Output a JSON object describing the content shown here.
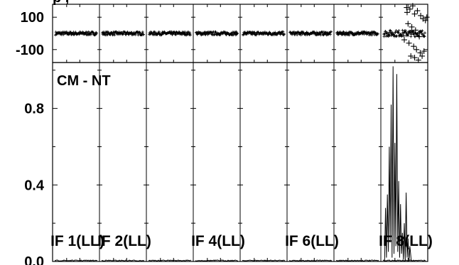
{
  "header_fragment": "p                  ,",
  "panel_label": "CM - NT",
  "chart_data": [
    {
      "type": "scatter",
      "panel": "phase",
      "ylim": [
        -180,
        180
      ],
      "y_ticks": [
        {
          "value": 100,
          "label": "100"
        },
        {
          "value": -100,
          "label": "-100"
        }
      ],
      "marker": "+",
      "grid": false,
      "if_windows": [
        {
          "phase_center": 0,
          "phase_spread": 10
        },
        {
          "phase_center": 0,
          "phase_spread": 10
        },
        {
          "phase_center": 0,
          "phase_spread": 10
        },
        {
          "phase_center": 0,
          "phase_spread": 10
        },
        {
          "phase_center": 0,
          "phase_spread": 10
        },
        {
          "phase_center": 0,
          "phase_spread": 10
        },
        {
          "phase_center": 0,
          "phase_spread": 10
        },
        {
          "phase_center": 0,
          "phase_spread": 20
        }
      ],
      "outlier_points": [
        [
          0.55,
          160
        ],
        [
          0.62,
          150
        ],
        [
          0.68,
          170
        ],
        [
          0.72,
          120
        ],
        [
          0.78,
          140
        ],
        [
          0.85,
          110
        ],
        [
          0.9,
          90
        ],
        [
          0.95,
          80
        ],
        [
          0.58,
          60
        ],
        [
          0.66,
          40
        ],
        [
          0.74,
          20
        ],
        [
          0.82,
          -20
        ],
        [
          0.6,
          -60
        ],
        [
          0.7,
          -80
        ],
        [
          0.76,
          -100
        ],
        [
          0.84,
          -120
        ],
        [
          0.64,
          -140
        ],
        [
          0.72,
          -150
        ],
        [
          0.8,
          -165
        ],
        [
          0.88,
          -140
        ],
        [
          0.92,
          -110
        ],
        [
          0.56,
          130
        ],
        [
          0.98,
          100
        ],
        [
          0.5,
          -40
        ]
      ]
    },
    {
      "type": "line",
      "panel": "amplitude",
      "ylim": [
        0,
        1.04
      ],
      "y_ticks": [
        {
          "value": 0.0,
          "label": "0.0"
        },
        {
          "value": 0.4,
          "label": "0.4"
        },
        {
          "value": 0.8,
          "label": "0.8"
        }
      ],
      "grid": false,
      "if_windows": [
        {
          "label": "IF 1(LL)",
          "baseline": 0.005
        },
        {
          "label": "IF 2(LL)",
          "baseline": 0.005
        },
        {
          "label": "",
          "baseline": 0.005
        },
        {
          "label": "IF 4(LL)",
          "baseline": 0.005
        },
        {
          "label": "",
          "baseline": 0.005
        },
        {
          "label": "IF 6(LL)",
          "baseline": 0.005
        },
        {
          "label": "",
          "baseline": 0.005
        },
        {
          "label": "IF 8(LL)",
          "baseline": 0.005
        }
      ],
      "spikes": [
        [
          0.08,
          0.0
        ],
        [
          0.1,
          0.28
        ],
        [
          0.12,
          0.02
        ],
        [
          0.14,
          0.35
        ],
        [
          0.16,
          0.05
        ],
        [
          0.18,
          0.6
        ],
        [
          0.2,
          0.1
        ],
        [
          0.22,
          0.82
        ],
        [
          0.24,
          0.02
        ],
        [
          0.26,
          1.02
        ],
        [
          0.28,
          0.04
        ],
        [
          0.3,
          0.62
        ],
        [
          0.32,
          0.08
        ],
        [
          0.34,
          0.98
        ],
        [
          0.36,
          0.05
        ],
        [
          0.38,
          0.42
        ],
        [
          0.4,
          0.02
        ],
        [
          0.42,
          0.3
        ],
        [
          0.44,
          0.04
        ],
        [
          0.46,
          0.15
        ],
        [
          0.48,
          0.01
        ],
        [
          0.5,
          0.2
        ],
        [
          0.52,
          0.0
        ],
        [
          0.54,
          0.36
        ],
        [
          0.56,
          0.02
        ],
        [
          0.58,
          0.12
        ],
        [
          0.6,
          0.0
        ],
        [
          0.62,
          0.08
        ],
        [
          0.65,
          0.0
        ]
      ]
    }
  ]
}
